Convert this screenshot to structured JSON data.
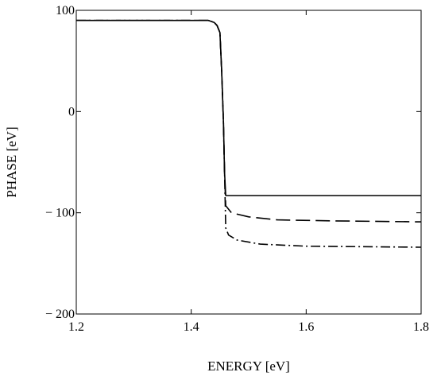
{
  "chart_data": {
    "type": "line",
    "title": "",
    "xlabel": "ENERGY [eV]",
    "ylabel": "PHASE [eV]",
    "xlim": [
      1.2,
      1.8
    ],
    "ylim": [
      -200,
      100
    ],
    "grid": false,
    "legend": "none",
    "x_ticks": [
      1.2,
      1.4,
      1.6,
      1.8
    ],
    "x_tick_labels": [
      "1.2",
      "1.4",
      "1.6",
      "1.8"
    ],
    "y_ticks": [
      100,
      0,
      -100,
      -200
    ],
    "y_tick_labels": [
      "100",
      "0",
      "− 100",
      "− 200"
    ],
    "series": [
      {
        "style": "solid",
        "points": [
          [
            1.2,
            90
          ],
          [
            1.43,
            90
          ],
          [
            1.44,
            88
          ],
          [
            1.445,
            85
          ],
          [
            1.45,
            78
          ],
          [
            1.453,
            40
          ],
          [
            1.456,
            -10
          ],
          [
            1.458,
            -60
          ],
          [
            1.46,
            -83
          ],
          [
            1.8,
            -83
          ]
        ]
      },
      {
        "style": "dashed",
        "points": [
          [
            1.2,
            90
          ],
          [
            1.43,
            90
          ],
          [
            1.44,
            88
          ],
          [
            1.445,
            85
          ],
          [
            1.45,
            78
          ],
          [
            1.453,
            40
          ],
          [
            1.456,
            -10
          ],
          [
            1.458,
            -60
          ],
          [
            1.46,
            -93
          ],
          [
            1.47,
            -100
          ],
          [
            1.5,
            -104
          ],
          [
            1.55,
            -107
          ],
          [
            1.65,
            -108
          ],
          [
            1.8,
            -109
          ]
        ]
      },
      {
        "style": "dashdot",
        "points": [
          [
            1.2,
            90
          ],
          [
            1.43,
            90
          ],
          [
            1.44,
            88
          ],
          [
            1.445,
            85
          ],
          [
            1.45,
            78
          ],
          [
            1.453,
            40
          ],
          [
            1.456,
            -10
          ],
          [
            1.458,
            -60
          ],
          [
            1.46,
            -115
          ],
          [
            1.465,
            -122
          ],
          [
            1.48,
            -127
          ],
          [
            1.52,
            -131
          ],
          [
            1.6,
            -133
          ],
          [
            1.8,
            -134
          ]
        ]
      }
    ]
  }
}
